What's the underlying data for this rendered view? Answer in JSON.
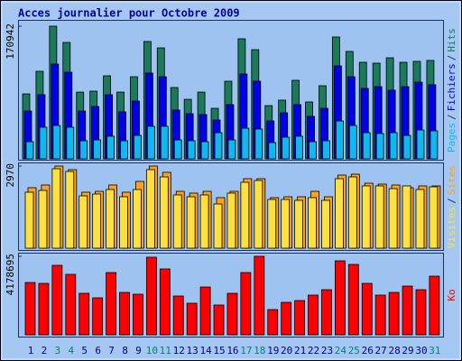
{
  "chart_data": [
    {
      "type": "bar",
      "title": "Acces journalier pour Octobre 2009",
      "categories": [
        "1",
        "2",
        "3",
        "4",
        "5",
        "6",
        "7",
        "8",
        "9",
        "10",
        "11",
        "12",
        "13",
        "14",
        "15",
        "16",
        "17",
        "18",
        "19",
        "20",
        "21",
        "22",
        "23",
        "24",
        "25",
        "26",
        "27",
        "28",
        "29",
        "30",
        "31"
      ],
      "category_colors": [
        "#000080",
        "#000080",
        "#008080",
        "#008080",
        "#000080",
        "#000080",
        "#000080",
        "#000080",
        "#000080",
        "#008080",
        "#008080",
        "#000080",
        "#000080",
        "#000080",
        "#000080",
        "#000080",
        "#008080",
        "#008080",
        "#000080",
        "#000080",
        "#000080",
        "#000080",
        "#000080",
        "#008080",
        "#008080",
        "#000080",
        "#000080",
        "#000080",
        "#000080",
        "#000080",
        "#008080"
      ],
      "legend_separator": "/",
      "ylim": [
        0,
        170942
      ],
      "yticks": [
        170942
      ],
      "series": [
        {
          "name": "Hits",
          "color": "#1a7a5a",
          "values": [
            83700,
            112800,
            170942,
            150000,
            86000,
            87200,
            107000,
            86000,
            105800,
            151200,
            143000,
            91900,
            76700,
            86000,
            65100,
            100000,
            154700,
            140700,
            68600,
            75600,
            101200,
            73300,
            94200,
            157000,
            138400,
            124400,
            123300,
            130200,
            124400,
            125600,
            126800
          ]
        },
        {
          "name": "Fichiers",
          "color": "#0000e8",
          "values": [
            61600,
            82600,
            122100,
            111600,
            61600,
            67400,
            82600,
            60500,
            74400,
            110500,
            105800,
            62800,
            58100,
            57000,
            50000,
            69800,
            109300,
            100000,
            48800,
            59300,
            69800,
            54700,
            65100,
            119800,
            105800,
            90700,
            93000,
            88400,
            93000,
            98800,
            95400
          ]
        },
        {
          "name": "Pages",
          "color": "#10b8f0",
          "values": [
            22100,
            40700,
            43000,
            40700,
            23300,
            24400,
            29100,
            23300,
            30200,
            41900,
            41900,
            24400,
            23300,
            22100,
            33700,
            24400,
            39500,
            38400,
            20900,
            27900,
            29100,
            22100,
            23300,
            48800,
            43000,
            33700,
            32600,
            33700,
            30200,
            37200,
            36100
          ]
        }
      ]
    },
    {
      "type": "bar",
      "ylim": [
        0,
        2970
      ],
      "yticks": [
        2970
      ],
      "series": [
        {
          "name": "Sites",
          "color": "#ffa020",
          "values": [
            2187,
            2285,
            2970,
            2840,
            2024,
            2056,
            2285,
            2024,
            2415,
            2970,
            2742,
            2056,
            1991,
            2056,
            1828,
            2056,
            2513,
            2513,
            1828,
            1860,
            1860,
            2056,
            1860,
            2644,
            2676,
            2350,
            2317,
            2285,
            2187,
            2252,
            2252
          ]
        },
        {
          "name": "Visites",
          "color": "#ffe040",
          "values": [
            2024,
            2089,
            2872,
            2774,
            1893,
            1958,
            2122,
            1860,
            2122,
            2840,
            2578,
            1926,
            1860,
            1926,
            1599,
            1991,
            2383,
            2448,
            1762,
            1762,
            1730,
            1828,
            1730,
            2513,
            2578,
            2252,
            2252,
            2154,
            2252,
            2122,
            2219
          ]
        }
      ]
    },
    {
      "type": "bar",
      "ylim": [
        0,
        4178695
      ],
      "yticks": [
        4178695
      ],
      "series": [
        {
          "name": "Ko",
          "color": "#ff0000",
          "values": [
            2785800,
            2737800,
            3698400,
            3218100,
            2209400,
            1969300,
            3314100,
            2257500,
            2161400,
            4130700,
            3506300,
            2065300,
            1681100,
            2545600,
            1585000,
            2209400,
            3314100,
            4178695,
            1344900,
            1729100,
            1825200,
            2113400,
            2401600,
            3938500,
            3746400,
            2737800,
            2113400,
            2257500,
            2593700,
            2401600,
            3122000
          ]
        }
      ]
    }
  ]
}
